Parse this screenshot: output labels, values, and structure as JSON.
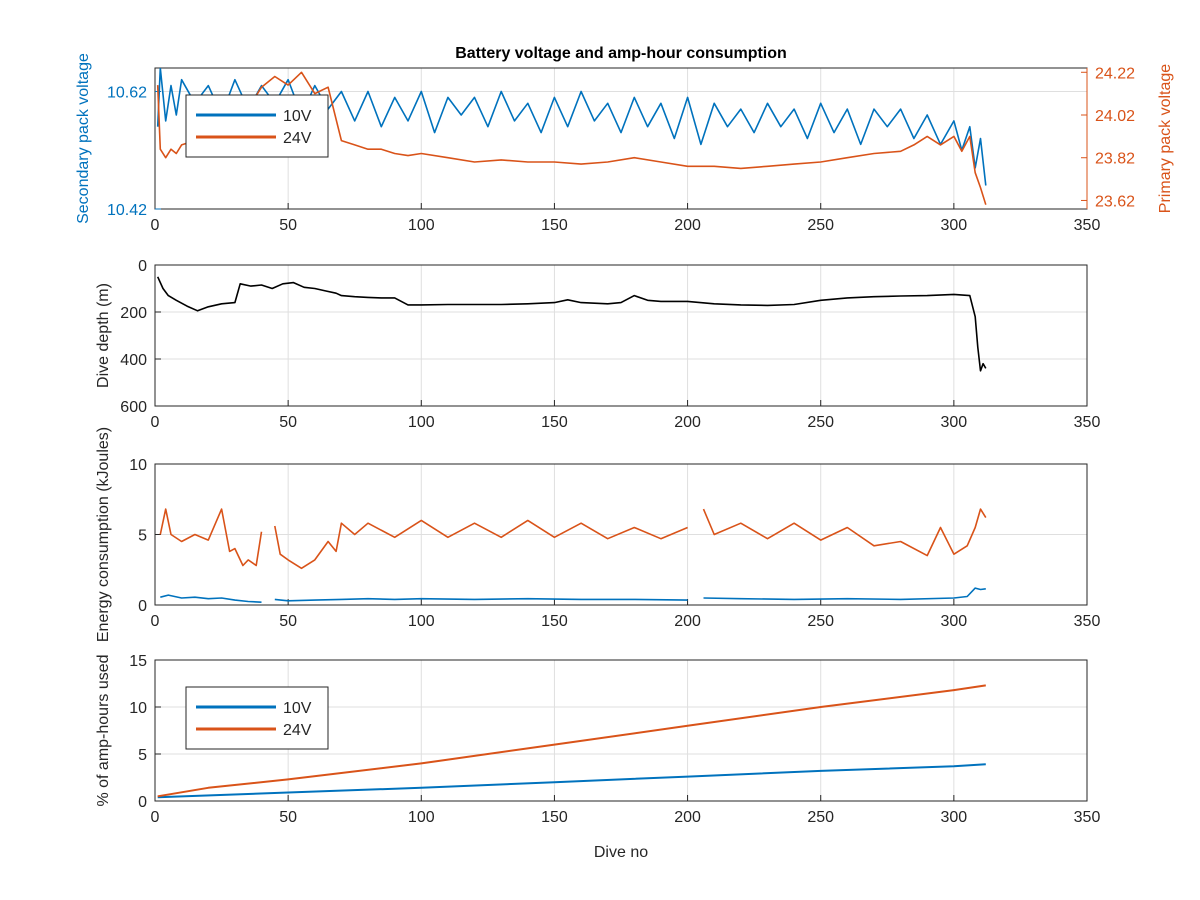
{
  "figure_title": "Battery voltage and amp-hour consumption",
  "colors": {
    "blue": "#0072BD",
    "orange": "#D95319",
    "black": "#000000",
    "axis": "#262626",
    "grid": "#dfdfdf"
  },
  "chart_data": [
    {
      "type": "line",
      "title": "Battery voltage and amp-hour consumption",
      "xlabel": "",
      "ylabel": "Secondary pack voltage",
      "ylabel_right": "Primary pack voltage",
      "xlim": [
        0,
        350
      ],
      "ylim": [
        10.42,
        10.66
      ],
      "ylim_right": [
        23.58,
        24.24
      ],
      "xticks": [
        "0",
        "50",
        "100",
        "150",
        "200",
        "250",
        "300",
        "350"
      ],
      "yticks": [
        "10.42",
        "10.62"
      ],
      "yticks_right": [
        "23.62",
        "23.82",
        "24.02",
        "24.22"
      ],
      "grid": true,
      "legend": {
        "position": "top-left",
        "entries": [
          "10V",
          "24V"
        ]
      },
      "series": [
        {
          "name": "10V",
          "axis": "left",
          "x": [
            1,
            2,
            4,
            6,
            8,
            10,
            15,
            20,
            25,
            30,
            35,
            40,
            45,
            50,
            55,
            60,
            65,
            70,
            75,
            80,
            85,
            90,
            95,
            100,
            105,
            110,
            115,
            120,
            125,
            130,
            135,
            140,
            145,
            150,
            155,
            160,
            165,
            170,
            175,
            180,
            185,
            190,
            195,
            200,
            205,
            210,
            215,
            220,
            225,
            230,
            235,
            240,
            245,
            250,
            255,
            260,
            265,
            270,
            275,
            280,
            285,
            290,
            295,
            300,
            303,
            306,
            308,
            310,
            312
          ],
          "y": [
            10.56,
            10.66,
            10.57,
            10.63,
            10.58,
            10.64,
            10.6,
            10.63,
            10.58,
            10.64,
            10.59,
            10.63,
            10.6,
            10.64,
            10.58,
            10.63,
            10.59,
            10.62,
            10.57,
            10.62,
            10.56,
            10.61,
            10.57,
            10.62,
            10.55,
            10.61,
            10.58,
            10.61,
            10.56,
            10.62,
            10.57,
            10.6,
            10.55,
            10.61,
            10.56,
            10.62,
            10.57,
            10.6,
            10.55,
            10.61,
            10.56,
            10.6,
            10.54,
            10.61,
            10.53,
            10.6,
            10.56,
            10.59,
            10.55,
            10.6,
            10.56,
            10.59,
            10.54,
            10.6,
            10.55,
            10.59,
            10.53,
            10.59,
            10.56,
            10.59,
            10.54,
            10.58,
            10.53,
            10.57,
            10.52,
            10.56,
            10.49,
            10.54,
            10.46
          ]
        },
        {
          "name": "24V",
          "axis": "right",
          "x": [
            1,
            2,
            4,
            6,
            8,
            10,
            15,
            20,
            25,
            30,
            35,
            40,
            45,
            50,
            55,
            60,
            65,
            70,
            75,
            80,
            85,
            90,
            95,
            100,
            110,
            120,
            130,
            140,
            150,
            160,
            170,
            180,
            190,
            200,
            210,
            220,
            230,
            240,
            250,
            260,
            270,
            280,
            285,
            290,
            295,
            300,
            303,
            306,
            308,
            310,
            312
          ],
          "y": [
            24.16,
            23.86,
            23.82,
            23.86,
            23.84,
            23.88,
            23.9,
            23.93,
            23.95,
            24.1,
            24.05,
            24.15,
            24.2,
            24.16,
            24.22,
            24.12,
            24.15,
            23.9,
            23.88,
            23.86,
            23.86,
            23.84,
            23.83,
            23.84,
            23.82,
            23.8,
            23.81,
            23.8,
            23.8,
            23.79,
            23.8,
            23.82,
            23.8,
            23.78,
            23.78,
            23.77,
            23.78,
            23.79,
            23.8,
            23.82,
            23.84,
            23.85,
            23.88,
            23.92,
            23.88,
            23.92,
            23.85,
            23.92,
            23.75,
            23.68,
            23.6
          ]
        }
      ]
    },
    {
      "type": "line",
      "xlabel": "",
      "ylabel": "Dive depth (m)",
      "xlim": [
        0,
        350
      ],
      "ylim": [
        0,
        600
      ],
      "y_reversed": true,
      "xticks": [
        "0",
        "50",
        "100",
        "150",
        "200",
        "250",
        "300",
        "350"
      ],
      "yticks": [
        "0",
        "200",
        "400",
        "600"
      ],
      "grid": true,
      "series": [
        {
          "name": "",
          "x": [
            1,
            3,
            5,
            8,
            12,
            16,
            20,
            25,
            30,
            32,
            36,
            40,
            44,
            48,
            52,
            56,
            60,
            64,
            68,
            70,
            75,
            80,
            85,
            90,
            95,
            100,
            110,
            120,
            130,
            140,
            150,
            155,
            160,
            170,
            175,
            180,
            185,
            190,
            200,
            210,
            220,
            230,
            240,
            250,
            260,
            270,
            280,
            290,
            300,
            306,
            308,
            309,
            310,
            311,
            312
          ],
          "y": [
            50,
            100,
            130,
            150,
            175,
            195,
            178,
            165,
            160,
            80,
            90,
            85,
            100,
            80,
            75,
            95,
            100,
            110,
            120,
            130,
            135,
            138,
            140,
            140,
            170,
            170,
            168,
            168,
            168,
            165,
            160,
            148,
            160,
            165,
            160,
            130,
            150,
            155,
            155,
            165,
            170,
            172,
            168,
            150,
            140,
            135,
            132,
            130,
            125,
            130,
            220,
            350,
            450,
            420,
            440
          ]
        }
      ]
    },
    {
      "type": "line",
      "xlabel": "",
      "ylabel": "Energy consumption (kJoules)",
      "xlim": [
        0,
        350
      ],
      "ylim": [
        0,
        10
      ],
      "xticks": [
        "0",
        "50",
        "100",
        "150",
        "200",
        "250",
        "300",
        "350"
      ],
      "yticks": [
        "0",
        "5",
        "10"
      ],
      "grid": true,
      "series": [
        {
          "name": "10V",
          "segments": [
            {
              "x": [
                2,
                5,
                10,
                15,
                20,
                25,
                30,
                35,
                40
              ],
              "y": [
                0.55,
                0.7,
                0.5,
                0.55,
                0.45,
                0.5,
                0.35,
                0.25,
                0.2
              ]
            },
            {
              "x": [
                45,
                50,
                60,
                70,
                80,
                90,
                100,
                120,
                140,
                160,
                180,
                200
              ],
              "y": [
                0.4,
                0.3,
                0.35,
                0.4,
                0.45,
                0.4,
                0.45,
                0.4,
                0.45,
                0.4,
                0.4,
                0.35
              ]
            },
            {
              "x": [
                206,
                220,
                240,
                260,
                280,
                300,
                305,
                308,
                310,
                312
              ],
              "y": [
                0.5,
                0.45,
                0.4,
                0.45,
                0.4,
                0.5,
                0.6,
                1.2,
                1.1,
                1.15
              ]
            }
          ]
        },
        {
          "name": "24V",
          "segments": [
            {
              "x": [
                2,
                4,
                6,
                10,
                15,
                20,
                25,
                28,
                30,
                33,
                35,
                38,
                40
              ],
              "y": [
                5.0,
                6.8,
                5.0,
                4.5,
                5.0,
                4.6,
                6.8,
                3.8,
                4.0,
                2.8,
                3.2,
                2.8,
                5.2
              ]
            },
            {
              "x": [
                45,
                47,
                50,
                55,
                60,
                65,
                68,
                70,
                75,
                80,
                90,
                100,
                110,
                120,
                130,
                140,
                150,
                160,
                170,
                180,
                190,
                200
              ],
              "y": [
                5.6,
                3.6,
                3.2,
                2.6,
                3.2,
                4.5,
                3.8,
                5.8,
                5.0,
                5.8,
                4.8,
                6.0,
                4.8,
                5.8,
                4.8,
                6.0,
                4.8,
                5.8,
                4.7,
                5.5,
                4.7,
                5.5
              ]
            },
            {
              "x": [
                206,
                210,
                220,
                230,
                240,
                250,
                260,
                270,
                280,
                290,
                295,
                300,
                305,
                308,
                310,
                312
              ],
              "y": [
                6.8,
                5.0,
                5.8,
                4.7,
                5.8,
                4.6,
                5.5,
                4.2,
                4.5,
                3.5,
                5.5,
                3.6,
                4.2,
                5.5,
                6.8,
                6.2
              ]
            }
          ]
        }
      ]
    },
    {
      "type": "line",
      "xlabel": "Dive no",
      "ylabel": "% of amp-hours used",
      "xlim": [
        0,
        350
      ],
      "ylim": [
        0,
        15
      ],
      "xticks": [
        "0",
        "50",
        "100",
        "150",
        "200",
        "250",
        "300",
        "350"
      ],
      "yticks": [
        "0",
        "5",
        "10",
        "15"
      ],
      "grid": true,
      "legend": {
        "position": "middle-left",
        "entries": [
          "10V",
          "24V"
        ]
      },
      "series": [
        {
          "name": "10V",
          "x": [
            1,
            50,
            100,
            150,
            200,
            250,
            300,
            312
          ],
          "y": [
            0.4,
            0.9,
            1.4,
            2.0,
            2.6,
            3.2,
            3.7,
            3.9
          ]
        },
        {
          "name": "24V",
          "x": [
            1,
            20,
            50,
            100,
            150,
            200,
            250,
            300,
            312
          ],
          "y": [
            0.5,
            1.4,
            2.3,
            4.0,
            6.0,
            8.0,
            10.0,
            11.8,
            12.3
          ]
        }
      ]
    }
  ]
}
